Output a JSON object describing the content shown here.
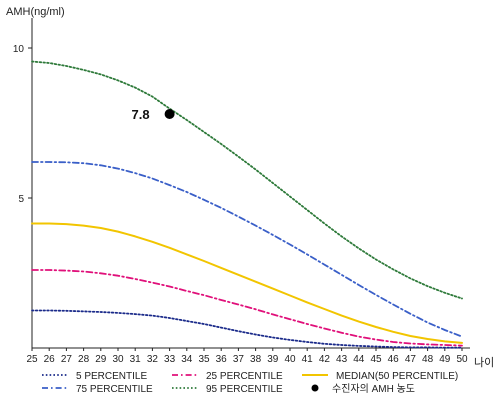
{
  "chart_data": {
    "type": "line",
    "ylabel": "AMH(ng/ml)",
    "xlabel": "나이",
    "x": [
      25,
      26,
      27,
      28,
      29,
      30,
      31,
      32,
      33,
      34,
      35,
      36,
      37,
      38,
      39,
      40,
      41,
      42,
      43,
      44,
      45,
      46,
      47,
      48,
      49,
      50
    ],
    "xlim": [
      25,
      50
    ],
    "ylim": [
      0,
      11
    ],
    "yticks": [
      5,
      10
    ],
    "grid": false,
    "legend_position": "bottom",
    "series": [
      {
        "name": "5 PERCENTILE",
        "color": "#1a2a8a",
        "style": "dotted",
        "values": [
          1.25,
          1.25,
          1.24,
          1.22,
          1.2,
          1.17,
          1.13,
          1.08,
          1.0,
          0.9,
          0.8,
          0.68,
          0.56,
          0.45,
          0.35,
          0.27,
          0.2,
          0.14,
          0.1,
          0.07,
          0.05,
          0.03,
          0.02,
          0.02,
          0.01,
          0.01
        ]
      },
      {
        "name": "25 PERCENTILE",
        "color": "#e0107a",
        "style": "dash-dot",
        "values": [
          2.6,
          2.6,
          2.58,
          2.55,
          2.49,
          2.41,
          2.3,
          2.18,
          2.05,
          1.9,
          1.76,
          1.6,
          1.45,
          1.29,
          1.12,
          0.96,
          0.8,
          0.65,
          0.51,
          0.38,
          0.28,
          0.2,
          0.15,
          0.12,
          0.1,
          0.08
        ]
      },
      {
        "name": "MEDIAN(50 PERCENTILE)",
        "color": "#f2c500",
        "style": "solid",
        "values": [
          4.15,
          4.15,
          4.13,
          4.08,
          4.0,
          3.88,
          3.72,
          3.54,
          3.34,
          3.12,
          2.9,
          2.67,
          2.44,
          2.21,
          1.98,
          1.75,
          1.52,
          1.3,
          1.08,
          0.88,
          0.7,
          0.54,
          0.4,
          0.3,
          0.22,
          0.17
        ]
      },
      {
        "name": "75 PERCENTILE",
        "color": "#3a5fc8",
        "style": "dash-dot",
        "values": [
          6.2,
          6.2,
          6.19,
          6.16,
          6.09,
          5.98,
          5.83,
          5.65,
          5.43,
          5.2,
          4.94,
          4.67,
          4.38,
          4.08,
          3.77,
          3.45,
          3.12,
          2.78,
          2.44,
          2.1,
          1.77,
          1.45,
          1.14,
          0.85,
          0.6,
          0.38
        ]
      },
      {
        "name": "95 PERCENTILE",
        "color": "#2e7a3a",
        "style": "dotted",
        "values": [
          9.55,
          9.5,
          9.4,
          9.27,
          9.12,
          8.92,
          8.68,
          8.38,
          7.98,
          7.6,
          7.2,
          6.8,
          6.38,
          5.95,
          5.5,
          5.05,
          4.6,
          4.15,
          3.72,
          3.32,
          2.95,
          2.62,
          2.32,
          2.06,
          1.84,
          1.65
        ]
      }
    ],
    "highlight_point": {
      "name": "수진자의 AMH 농도",
      "x": 33,
      "y": 7.8,
      "label": "7.8",
      "color": "#000000"
    }
  }
}
